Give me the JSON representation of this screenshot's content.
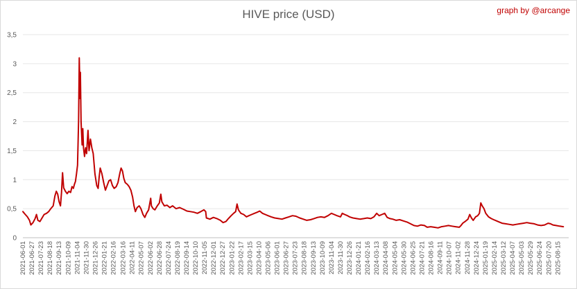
{
  "chart_data": {
    "type": "line",
    "title": "HIVE price (USD)",
    "credit": "graph by @arcange",
    "y_ticks": [
      "0",
      "0,5",
      "1",
      "1,5",
      "2",
      "2,5",
      "3",
      "3,5"
    ],
    "ylim": [
      0,
      3.5
    ],
    "grid": "horizontal",
    "x_tick_labels": [
      "2021-06-01",
      "2021-06-27",
      "2021-07-23",
      "2021-08-18",
      "2021-09-13",
      "2021-10-09",
      "2021-11-04",
      "2021-11-30",
      "2021-12-26",
      "2022-01-21",
      "2022-02-16",
      "2022-03-16",
      "2022-04-11",
      "2022-05-07",
      "2022-06-02",
      "2022-06-28",
      "2022-07-24",
      "2022-08-19",
      "2022-09-14",
      "2022-10-10",
      "2022-11-05",
      "2022-12-01",
      "2022-12-27",
      "2023-01-22",
      "2023-02-17",
      "2023-03-15",
      "2023-04-10",
      "2023-05-06",
      "2023-06-01",
      "2023-06-27",
      "2023-07-23",
      "2023-08-18",
      "2023-09-13",
      "2023-10-09",
      "2023-11-04",
      "2023-11-30",
      "2023-12-26",
      "2024-01-21",
      "2024-02-16",
      "2024-03-13",
      "2024-04-08",
      "2024-05-04",
      "2024-05-30",
      "2024-06-25",
      "2024-07-21",
      "2024-08-16",
      "2024-09-11",
      "2024-10-07",
      "2024-11-02",
      "2024-11-28",
      "2024-12-24",
      "2025-01-19",
      "2025-02-14",
      "2025-03-12",
      "2025-04-07",
      "2025-05-03",
      "2025-05-29",
      "2025-06-24",
      "2025-07-20",
      "2025-08-15"
    ],
    "series": [
      {
        "color": "#c00000",
        "points": [
          [
            "2021-06-01",
            0.45
          ],
          [
            "2021-06-08",
            0.4
          ],
          [
            "2021-06-14",
            0.36
          ],
          [
            "2021-06-20",
            0.3
          ],
          [
            "2021-06-24",
            0.22
          ],
          [
            "2021-06-30",
            0.26
          ],
          [
            "2021-07-06",
            0.33
          ],
          [
            "2021-07-10",
            0.4
          ],
          [
            "2021-07-14",
            0.3
          ],
          [
            "2021-07-20",
            0.28
          ],
          [
            "2021-07-25",
            0.33
          ],
          [
            "2021-08-01",
            0.4
          ],
          [
            "2021-08-08",
            0.42
          ],
          [
            "2021-08-14",
            0.45
          ],
          [
            "2021-08-20",
            0.5
          ],
          [
            "2021-08-27",
            0.55
          ],
          [
            "2021-09-01",
            0.72
          ],
          [
            "2021-09-05",
            0.8
          ],
          [
            "2021-09-09",
            0.75
          ],
          [
            "2021-09-13",
            0.62
          ],
          [
            "2021-09-17",
            0.55
          ],
          [
            "2021-09-20",
            0.78
          ],
          [
            "2021-09-23",
            1.12
          ],
          [
            "2021-09-26",
            0.86
          ],
          [
            "2021-10-01",
            0.8
          ],
          [
            "2021-10-06",
            0.76
          ],
          [
            "2021-10-11",
            0.8
          ],
          [
            "2021-10-16",
            0.78
          ],
          [
            "2021-10-20",
            0.88
          ],
          [
            "2021-10-24",
            0.85
          ],
          [
            "2021-10-27",
            0.92
          ],
          [
            "2021-10-30",
            0.97
          ],
          [
            "2021-11-02",
            1.1
          ],
          [
            "2021-11-05",
            1.25
          ],
          [
            "2021-11-08",
            2.0
          ],
          [
            "2021-11-10",
            3.1
          ],
          [
            "2021-11-12",
            2.4
          ],
          [
            "2021-11-13",
            2.85
          ],
          [
            "2021-11-15",
            2.0
          ],
          [
            "2021-11-18",
            1.6
          ],
          [
            "2021-11-20",
            1.88
          ],
          [
            "2021-11-22",
            1.55
          ],
          [
            "2021-11-25",
            1.4
          ],
          [
            "2021-11-28",
            1.55
          ],
          [
            "2021-12-01",
            1.45
          ],
          [
            "2021-12-05",
            1.85
          ],
          [
            "2021-12-08",
            1.5
          ],
          [
            "2021-12-12",
            1.7
          ],
          [
            "2021-12-16",
            1.55
          ],
          [
            "2021-12-20",
            1.45
          ],
          [
            "2021-12-25",
            1.1
          ],
          [
            "2021-12-30",
            0.9
          ],
          [
            "2022-01-03",
            0.85
          ],
          [
            "2022-01-06",
            1.05
          ],
          [
            "2022-01-09",
            1.2
          ],
          [
            "2022-01-14",
            1.1
          ],
          [
            "2022-01-19",
            0.95
          ],
          [
            "2022-01-24",
            0.82
          ],
          [
            "2022-01-29",
            0.9
          ],
          [
            "2022-02-03",
            0.98
          ],
          [
            "2022-02-08",
            1.0
          ],
          [
            "2022-02-13",
            0.9
          ],
          [
            "2022-02-18",
            0.85
          ],
          [
            "2022-02-24",
            0.88
          ],
          [
            "2022-03-01",
            0.95
          ],
          [
            "2022-03-06",
            1.1
          ],
          [
            "2022-03-10",
            1.2
          ],
          [
            "2022-03-14",
            1.15
          ],
          [
            "2022-03-18",
            1.02
          ],
          [
            "2022-03-22",
            0.95
          ],
          [
            "2022-03-28",
            0.92
          ],
          [
            "2022-04-02",
            0.88
          ],
          [
            "2022-04-07",
            0.82
          ],
          [
            "2022-04-12",
            0.7
          ],
          [
            "2022-04-16",
            0.55
          ],
          [
            "2022-04-20",
            0.45
          ],
          [
            "2022-04-25",
            0.52
          ],
          [
            "2022-05-01",
            0.55
          ],
          [
            "2022-05-06",
            0.5
          ],
          [
            "2022-05-12",
            0.4
          ],
          [
            "2022-05-17",
            0.35
          ],
          [
            "2022-05-22",
            0.42
          ],
          [
            "2022-05-28",
            0.48
          ],
          [
            "2022-06-03",
            0.68
          ],
          [
            "2022-06-05",
            0.55
          ],
          [
            "2022-06-10",
            0.5
          ],
          [
            "2022-06-15",
            0.48
          ],
          [
            "2022-06-22",
            0.55
          ],
          [
            "2022-06-28",
            0.6
          ],
          [
            "2022-07-02",
            0.75
          ],
          [
            "2022-07-05",
            0.62
          ],
          [
            "2022-07-12",
            0.55
          ],
          [
            "2022-07-20",
            0.56
          ],
          [
            "2022-07-28",
            0.52
          ],
          [
            "2022-08-05",
            0.55
          ],
          [
            "2022-08-15",
            0.5
          ],
          [
            "2022-08-25",
            0.52
          ],
          [
            "2022-09-05",
            0.49
          ],
          [
            "2022-09-15",
            0.46
          ],
          [
            "2022-09-25",
            0.45
          ],
          [
            "2022-10-05",
            0.44
          ],
          [
            "2022-10-15",
            0.42
          ],
          [
            "2022-10-25",
            0.45
          ],
          [
            "2022-11-03",
            0.48
          ],
          [
            "2022-11-08",
            0.45
          ],
          [
            "2022-11-10",
            0.34
          ],
          [
            "2022-11-20",
            0.32
          ],
          [
            "2022-11-30",
            0.35
          ],
          [
            "2022-12-10",
            0.33
          ],
          [
            "2022-12-20",
            0.3
          ],
          [
            "2022-12-28",
            0.26
          ],
          [
            "2023-01-05",
            0.28
          ],
          [
            "2023-01-12",
            0.33
          ],
          [
            "2023-01-20",
            0.38
          ],
          [
            "2023-01-27",
            0.42
          ],
          [
            "2023-02-02",
            0.45
          ],
          [
            "2023-02-06",
            0.58
          ],
          [
            "2023-02-10",
            0.48
          ],
          [
            "2023-02-17",
            0.42
          ],
          [
            "2023-02-25",
            0.4
          ],
          [
            "2023-03-05",
            0.36
          ],
          [
            "2023-03-12",
            0.38
          ],
          [
            "2023-03-20",
            0.4
          ],
          [
            "2023-03-28",
            0.42
          ],
          [
            "2023-04-05",
            0.44
          ],
          [
            "2023-04-12",
            0.46
          ],
          [
            "2023-04-20",
            0.42
          ],
          [
            "2023-04-28",
            0.4
          ],
          [
            "2023-05-06",
            0.38
          ],
          [
            "2023-05-15",
            0.36
          ],
          [
            "2023-05-25",
            0.34
          ],
          [
            "2023-06-05",
            0.33
          ],
          [
            "2023-06-15",
            0.32
          ],
          [
            "2023-06-25",
            0.34
          ],
          [
            "2023-07-05",
            0.36
          ],
          [
            "2023-07-15",
            0.38
          ],
          [
            "2023-07-25",
            0.37
          ],
          [
            "2023-08-05",
            0.34
          ],
          [
            "2023-08-15",
            0.32
          ],
          [
            "2023-08-25",
            0.3
          ],
          [
            "2023-09-05",
            0.31
          ],
          [
            "2023-09-15",
            0.33
          ],
          [
            "2023-09-25",
            0.35
          ],
          [
            "2023-10-05",
            0.36
          ],
          [
            "2023-10-15",
            0.35
          ],
          [
            "2023-10-25",
            0.38
          ],
          [
            "2023-11-04",
            0.42
          ],
          [
            "2023-11-12",
            0.4
          ],
          [
            "2023-11-20",
            0.38
          ],
          [
            "2023-11-30",
            0.36
          ],
          [
            "2023-12-05",
            0.42
          ],
          [
            "2023-12-12",
            0.4
          ],
          [
            "2023-12-20",
            0.38
          ],
          [
            "2023-12-26",
            0.36
          ],
          [
            "2024-01-05",
            0.34
          ],
          [
            "2024-01-15",
            0.33
          ],
          [
            "2024-01-25",
            0.32
          ],
          [
            "2024-02-05",
            0.33
          ],
          [
            "2024-02-15",
            0.34
          ],
          [
            "2024-02-25",
            0.33
          ],
          [
            "2024-03-05",
            0.36
          ],
          [
            "2024-03-13",
            0.42
          ],
          [
            "2024-03-20",
            0.38
          ],
          [
            "2024-03-28",
            0.4
          ],
          [
            "2024-04-05",
            0.42
          ],
          [
            "2024-04-12",
            0.35
          ],
          [
            "2024-04-20",
            0.33
          ],
          [
            "2024-04-28",
            0.32
          ],
          [
            "2024-05-08",
            0.3
          ],
          [
            "2024-05-18",
            0.31
          ],
          [
            "2024-05-28",
            0.29
          ],
          [
            "2024-06-08",
            0.27
          ],
          [
            "2024-06-18",
            0.24
          ],
          [
            "2024-06-28",
            0.21
          ],
          [
            "2024-07-08",
            0.2
          ],
          [
            "2024-07-18",
            0.22
          ],
          [
            "2024-07-28",
            0.21
          ],
          [
            "2024-08-05",
            0.18
          ],
          [
            "2024-08-15",
            0.19
          ],
          [
            "2024-08-25",
            0.18
          ],
          [
            "2024-09-05",
            0.17
          ],
          [
            "2024-09-15",
            0.19
          ],
          [
            "2024-09-25",
            0.2
          ],
          [
            "2024-10-05",
            0.21
          ],
          [
            "2024-10-15",
            0.2
          ],
          [
            "2024-10-25",
            0.19
          ],
          [
            "2024-11-05",
            0.18
          ],
          [
            "2024-11-10",
            0.21
          ],
          [
            "2024-11-15",
            0.25
          ],
          [
            "2024-11-22",
            0.28
          ],
          [
            "2024-11-30",
            0.32
          ],
          [
            "2024-12-05",
            0.4
          ],
          [
            "2024-12-10",
            0.34
          ],
          [
            "2024-12-15",
            0.3
          ],
          [
            "2024-12-22",
            0.36
          ],
          [
            "2024-12-28",
            0.38
          ],
          [
            "2025-01-02",
            0.42
          ],
          [
            "2025-01-06",
            0.6
          ],
          [
            "2025-01-10",
            0.55
          ],
          [
            "2025-01-15",
            0.5
          ],
          [
            "2025-01-20",
            0.42
          ],
          [
            "2025-01-28",
            0.36
          ],
          [
            "2025-02-05",
            0.33
          ],
          [
            "2025-02-12",
            0.31
          ],
          [
            "2025-02-20",
            0.29
          ],
          [
            "2025-02-28",
            0.27
          ],
          [
            "2025-03-08",
            0.25
          ],
          [
            "2025-03-18",
            0.24
          ],
          [
            "2025-03-28",
            0.23
          ],
          [
            "2025-04-08",
            0.22
          ],
          [
            "2025-04-18",
            0.23
          ],
          [
            "2025-04-28",
            0.24
          ],
          [
            "2025-05-08",
            0.25
          ],
          [
            "2025-05-18",
            0.26
          ],
          [
            "2025-05-28",
            0.25
          ],
          [
            "2025-06-08",
            0.24
          ],
          [
            "2025-06-18",
            0.22
          ],
          [
            "2025-06-28",
            0.21
          ],
          [
            "2025-07-08",
            0.22
          ],
          [
            "2025-07-18",
            0.25
          ],
          [
            "2025-07-25",
            0.24
          ],
          [
            "2025-08-01",
            0.22
          ],
          [
            "2025-08-10",
            0.21
          ],
          [
            "2025-08-20",
            0.2
          ],
          [
            "2025-08-31",
            0.19
          ]
        ]
      }
    ]
  }
}
